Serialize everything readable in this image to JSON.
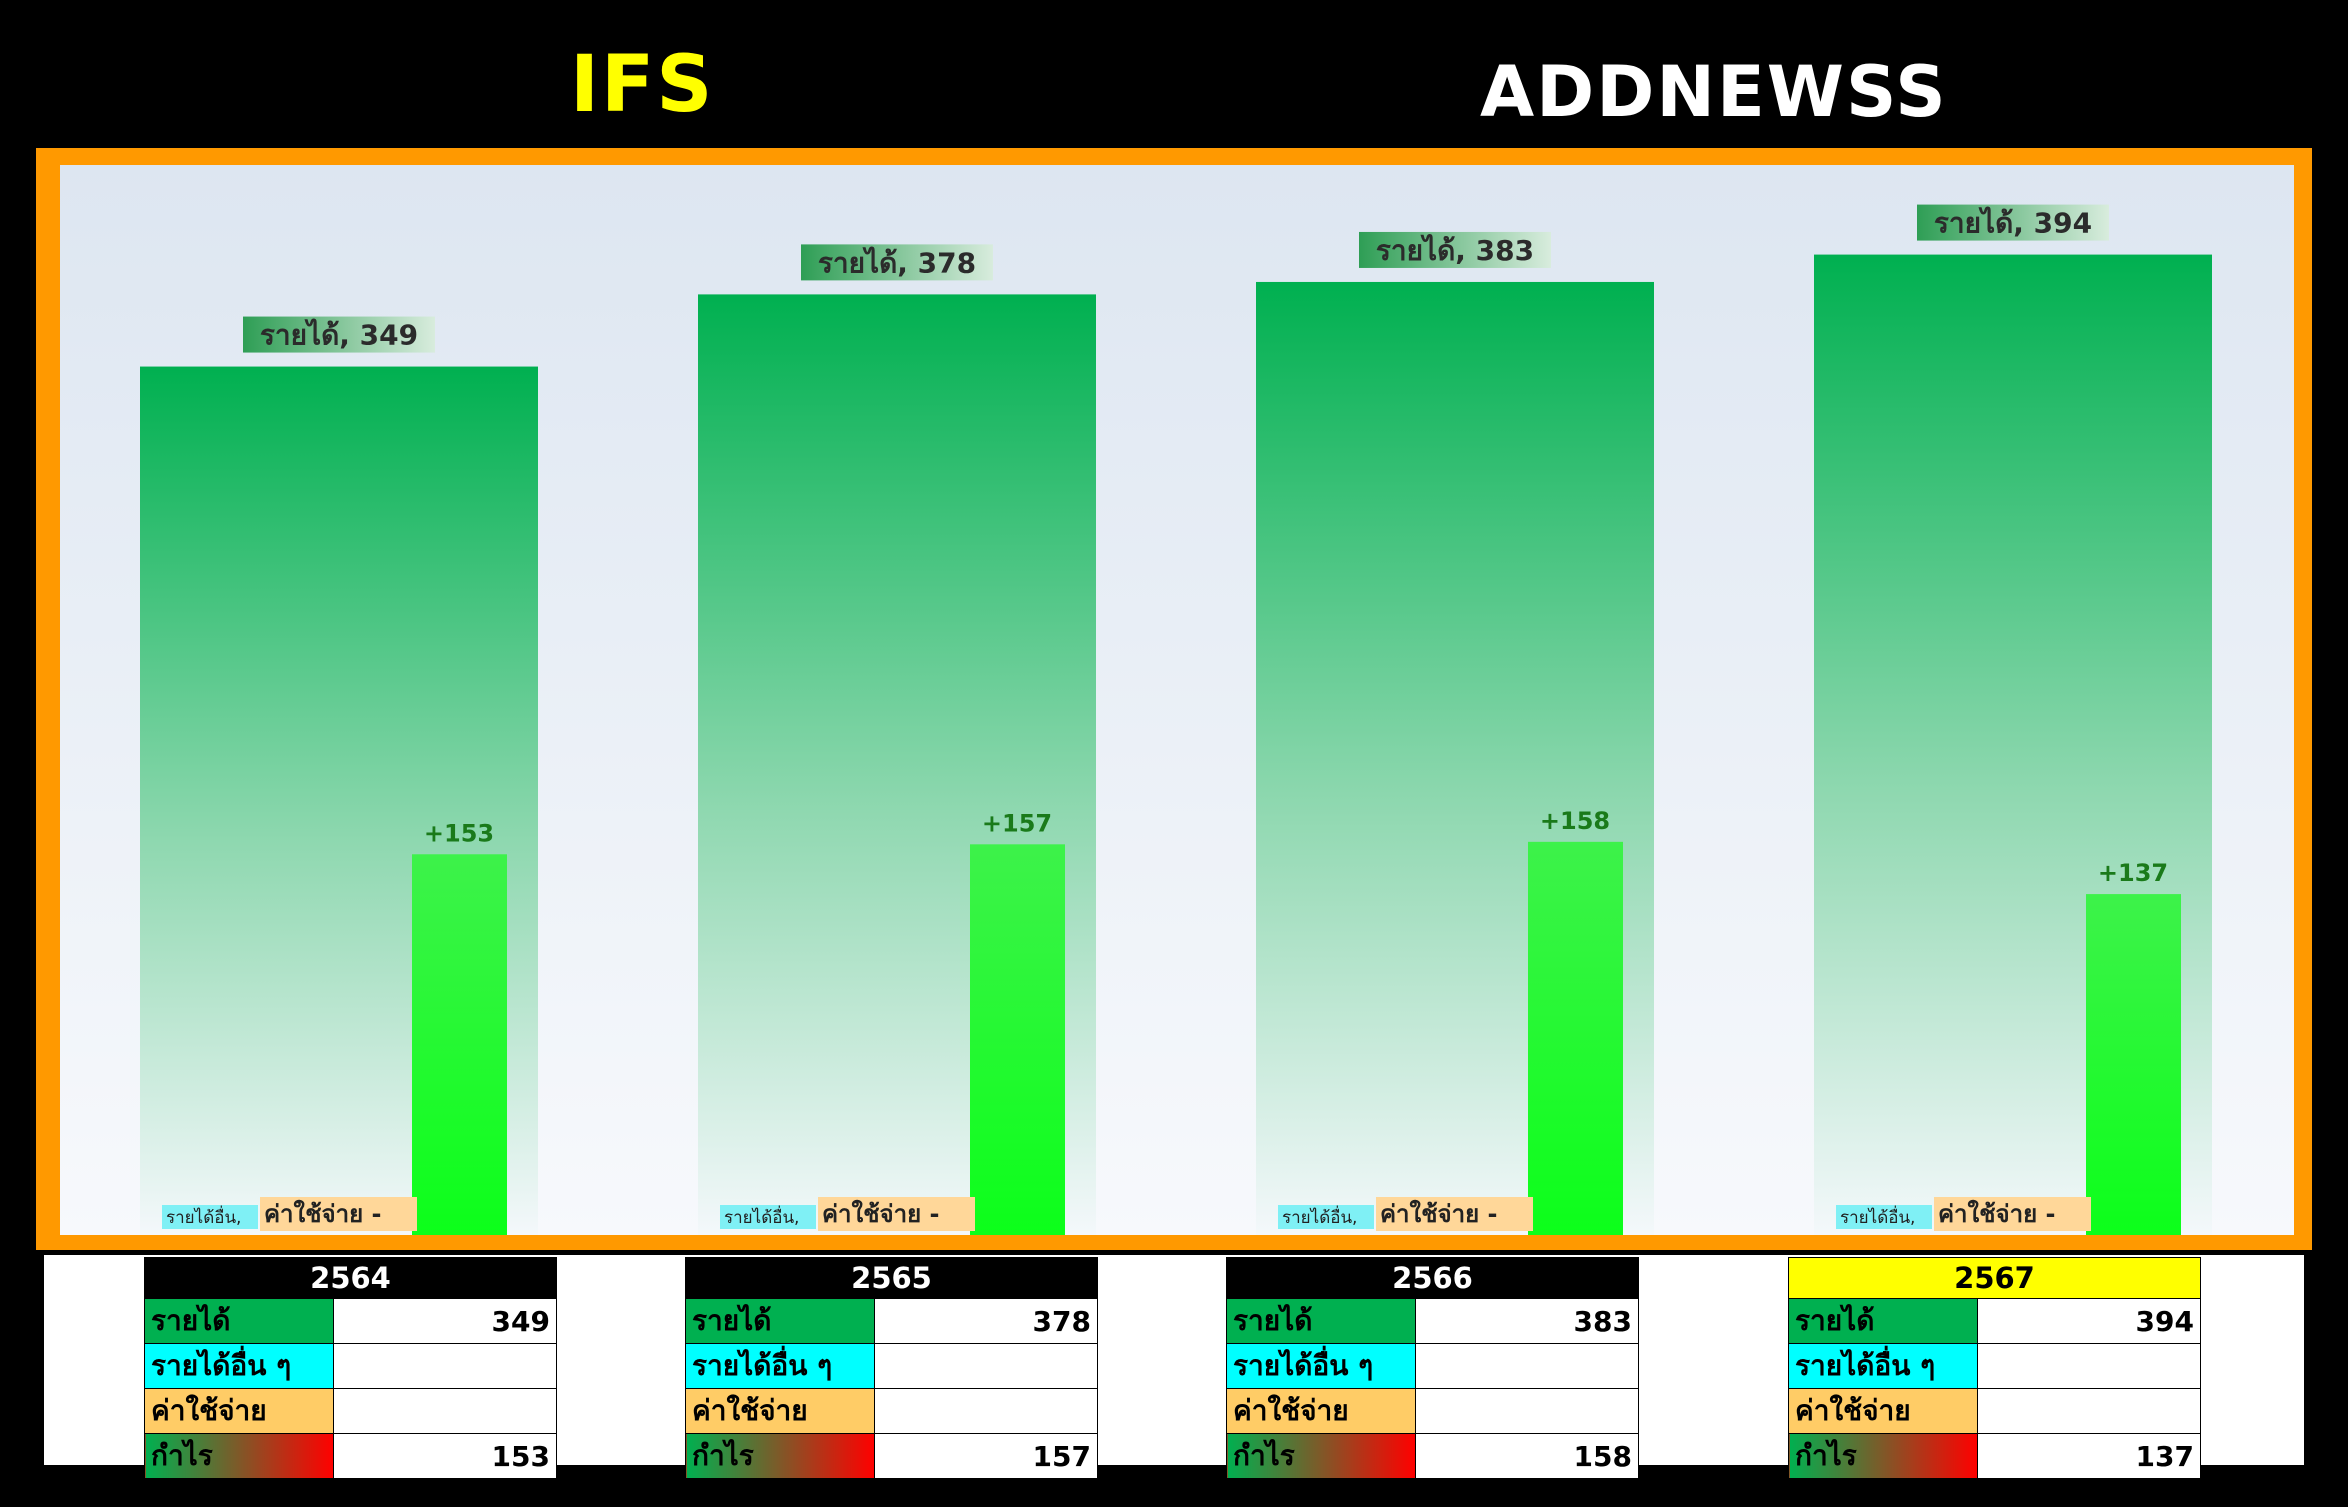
{
  "header": {
    "title": "IFS",
    "logo_text": "ADDNEWSS"
  },
  "colors": {
    "background": "#000000",
    "frame": "#ff9900",
    "revenue_bar": "#00b050",
    "profit_bar": "#00ff1a",
    "title": "#ffff00",
    "highlight_year": "#ffff00"
  },
  "chart_data": {
    "type": "bar",
    "categories": [
      "2564",
      "2565",
      "2566",
      "2567"
    ],
    "series": [
      {
        "name": "รายได้",
        "values": [
          349,
          378,
          383,
          394
        ]
      },
      {
        "name": "รายได้อื่น",
        "values": [
          0,
          0,
          0,
          0
        ]
      },
      {
        "name": "ค่าใช้จ่าย",
        "values": [
          0,
          0,
          0,
          0
        ]
      },
      {
        "name": "กำไร",
        "values": [
          153,
          157,
          158,
          137
        ]
      }
    ],
    "revenue_labels": [
      "รายได้, 349",
      "รายได้, 378",
      "รายได้, 383",
      "รายได้, 394"
    ],
    "profit_labels": [
      "+153",
      "+157",
      "+158",
      "+137"
    ],
    "other_income_label": "รายได้อื่น,",
    "expense_label": "ค่าใช้จ่าย  -",
    "ylim": [
      0,
      430
    ],
    "grid": false
  },
  "tables": [
    {
      "year": "2564",
      "highlight": false,
      "rows": [
        {
          "label": "รายได้",
          "value": "349"
        },
        {
          "label": "รายได้อื่น ๆ",
          "value": ""
        },
        {
          "label": "ค่าใช้จ่าย",
          "value": ""
        },
        {
          "label": "กำไร",
          "value": "153"
        }
      ]
    },
    {
      "year": "2565",
      "highlight": false,
      "rows": [
        {
          "label": "รายได้",
          "value": "378"
        },
        {
          "label": "รายได้อื่น ๆ",
          "value": ""
        },
        {
          "label": "ค่าใช้จ่าย",
          "value": ""
        },
        {
          "label": "กำไร",
          "value": "157"
        }
      ]
    },
    {
      "year": "2566",
      "highlight": false,
      "rows": [
        {
          "label": "รายได้",
          "value": "383"
        },
        {
          "label": "รายได้อื่น ๆ",
          "value": ""
        },
        {
          "label": "ค่าใช้จ่าย",
          "value": ""
        },
        {
          "label": "กำไร",
          "value": "158"
        }
      ]
    },
    {
      "year": "2567",
      "highlight": true,
      "rows": [
        {
          "label": "รายได้",
          "value": "394"
        },
        {
          "label": "รายได้อื่น ๆ",
          "value": ""
        },
        {
          "label": "ค่าใช้จ่าย",
          "value": ""
        },
        {
          "label": "กำไร",
          "value": "137"
        }
      ]
    }
  ]
}
